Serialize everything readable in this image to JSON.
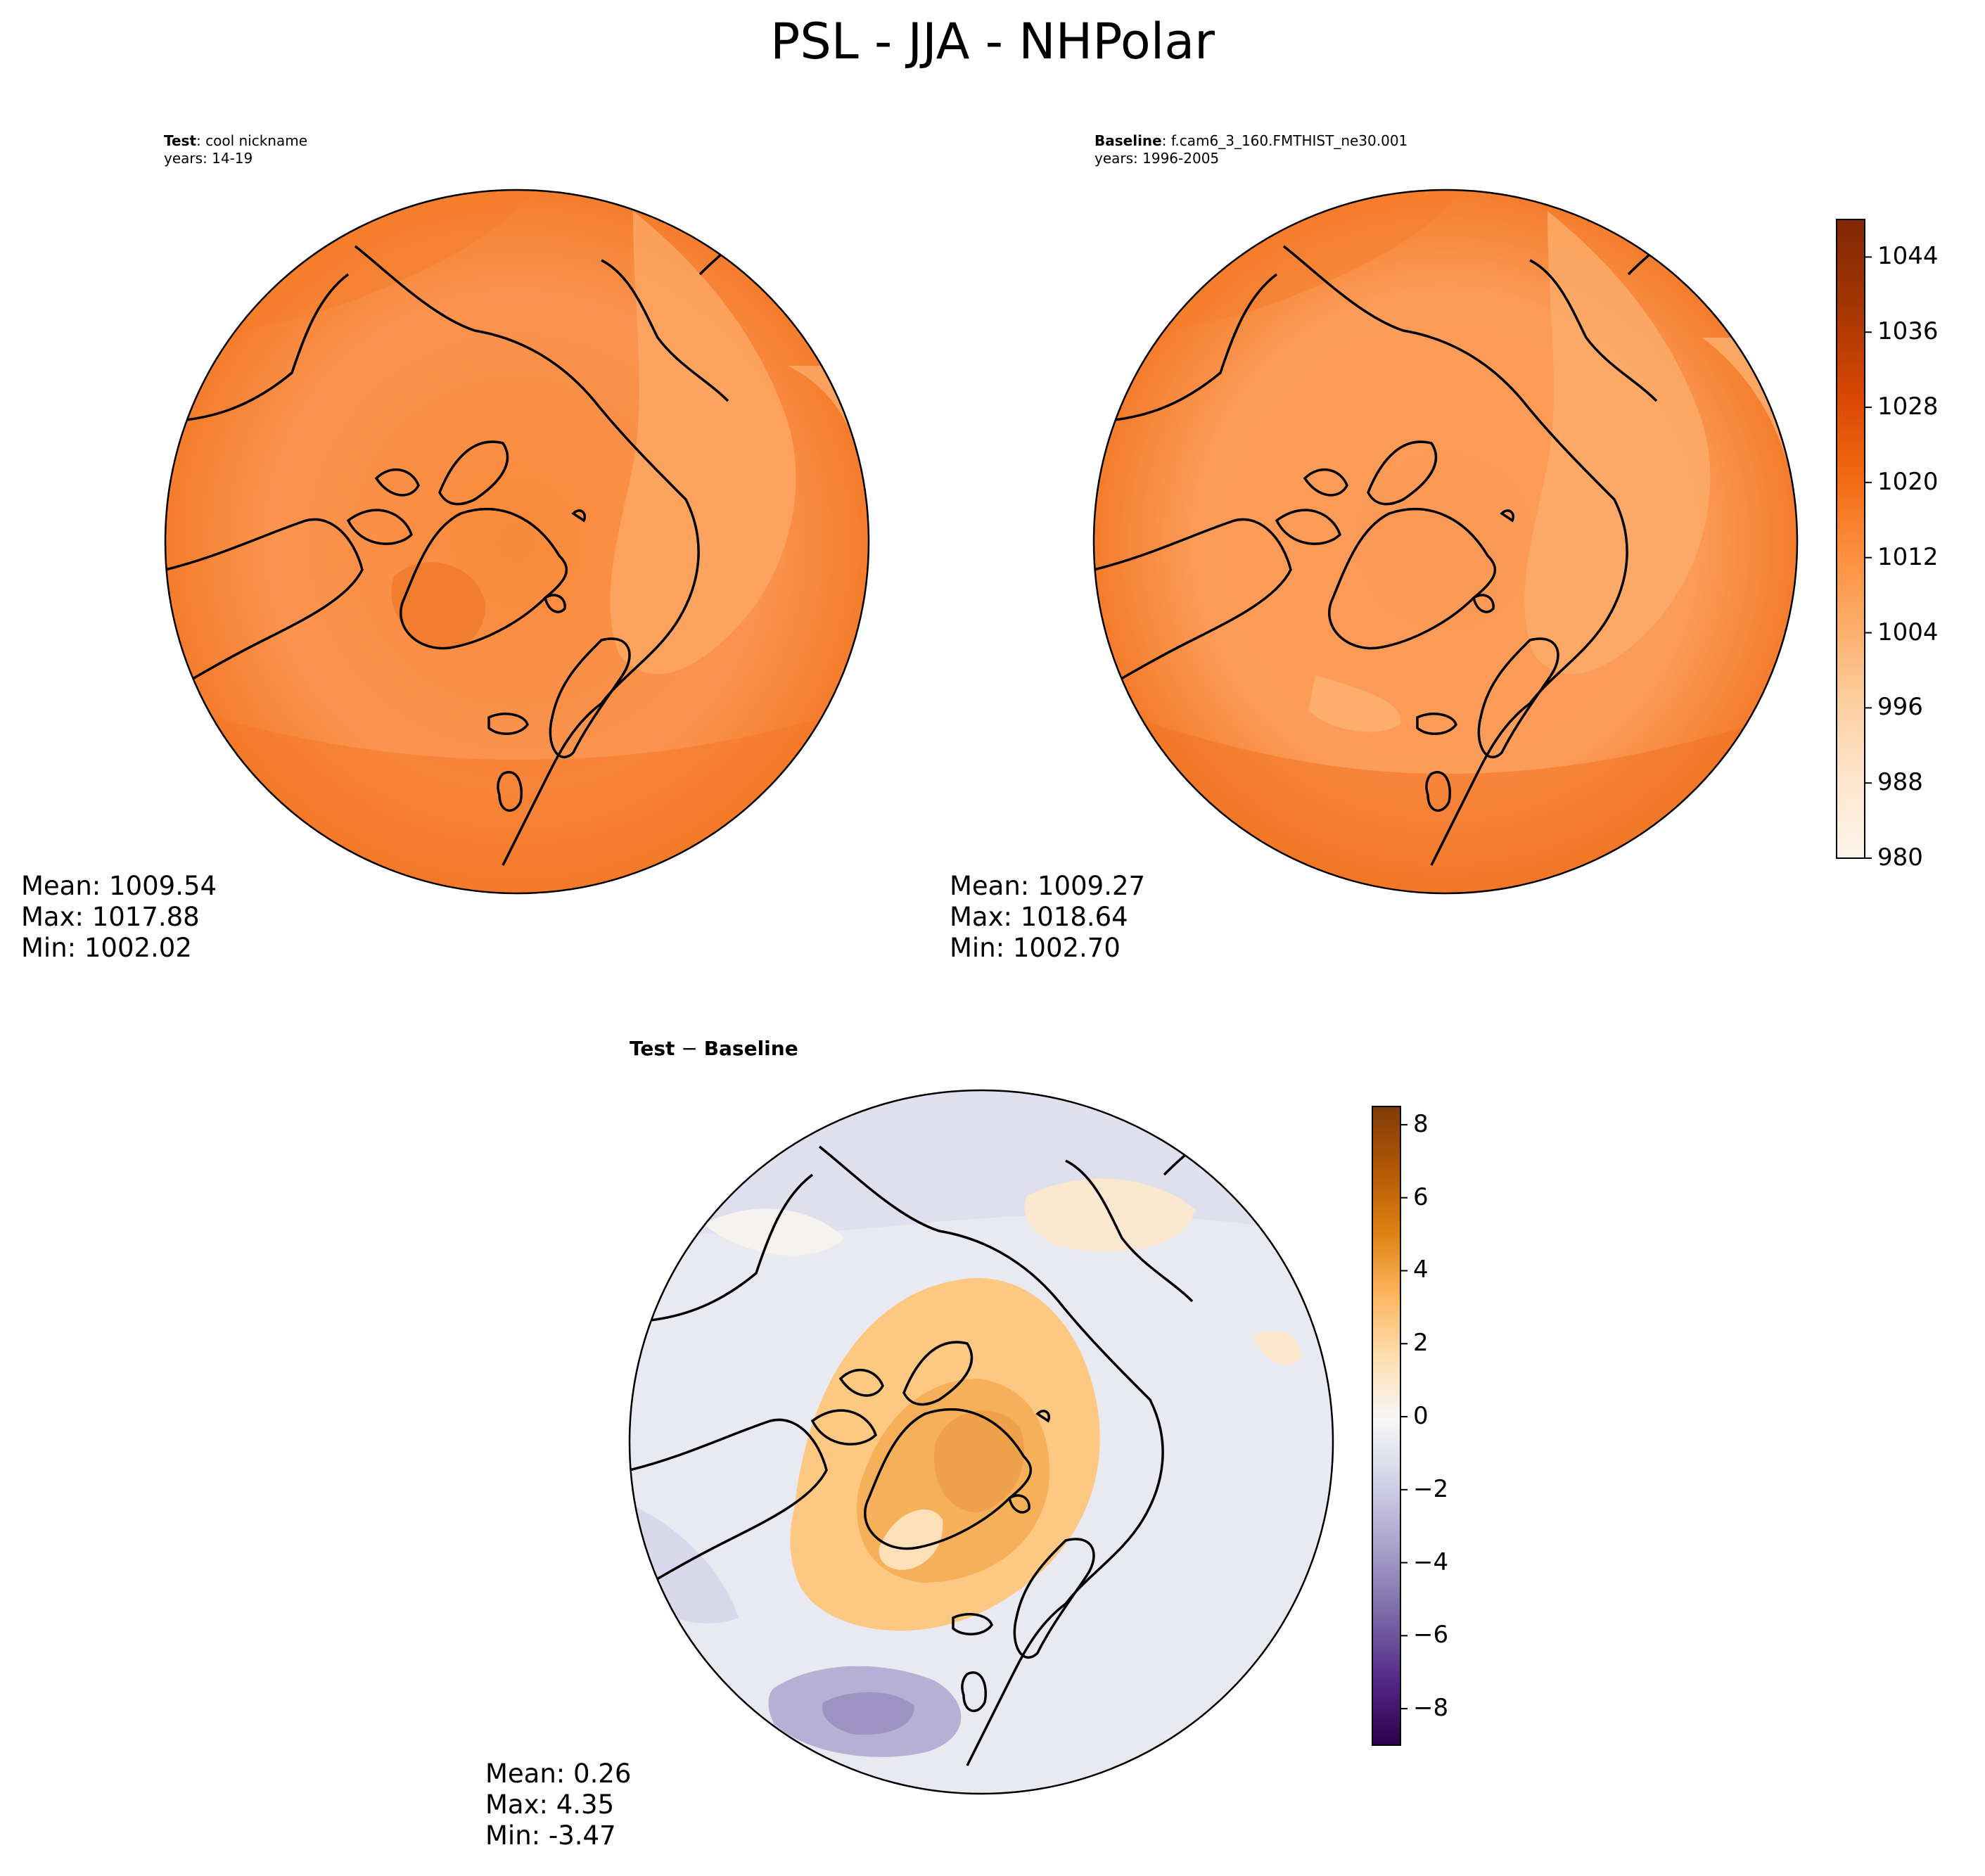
{
  "title": "PSL - JJA - NHPolar",
  "test_panel": {
    "label_bold": "Test",
    "label_rest": ": cool nickname",
    "years": "years: 14-19",
    "stats": [
      "Mean: 1009.54",
      "Max: 1017.88",
      "Min: 1002.02"
    ]
  },
  "baseline_panel": {
    "label_bold": "Baseline",
    "label_rest": ": f.cam6_3_160.FMTHIST_ne30.001",
    "years": "years: 1996-2005",
    "stats": [
      "Mean: 1009.27",
      "Max: 1018.64",
      "Min: 1002.70"
    ]
  },
  "diff_panel": {
    "label_a": "Test",
    "label_op": " − ",
    "label_b": "Baseline",
    "stats": [
      "Mean:  0.26",
      "Max:  4.35",
      "Min: -3.47"
    ]
  },
  "chart_data": [
    {
      "type": "heatmap",
      "projection": "north-polar-stereographic",
      "panel": "Test",
      "colormap": "Oranges",
      "mean": 1009.54,
      "max": 1017.88,
      "min": 1002.02
    },
    {
      "type": "heatmap",
      "projection": "north-polar-stereographic",
      "panel": "Baseline",
      "colormap": "Oranges",
      "mean": 1009.27,
      "max": 1018.64,
      "min": 1002.7,
      "colorbar": {
        "range": [
          980,
          1048
        ],
        "ticks": [
          980,
          988,
          996,
          1004,
          1012,
          1020,
          1028,
          1036,
          1044
        ],
        "tick_labels": [
          "980",
          "988",
          "996",
          "1004",
          "1012",
          "1020",
          "1028",
          "1036",
          "1044"
        ],
        "colors": [
          "#fff5eb",
          "#fee6ce",
          "#fdd0a2",
          "#fdae6b",
          "#fd8d3c",
          "#f16913",
          "#d94801",
          "#a63603",
          "#7f2704"
        ]
      }
    },
    {
      "type": "heatmap",
      "projection": "north-polar-stereographic",
      "panel": "Test - Baseline",
      "colormap": "PuOr_r",
      "mean": 0.26,
      "max": 4.35,
      "min": -3.47,
      "colorbar": {
        "range": [
          -9,
          8.5
        ],
        "ticks": [
          -8,
          -6,
          -4,
          -2,
          0,
          2,
          4,
          6,
          8
        ],
        "tick_labels": [
          "−8",
          "−6",
          "−4",
          "−2",
          "0",
          "2",
          "4",
          "6",
          "8"
        ],
        "colors": [
          "#2d004b",
          "#542788",
          "#8073ac",
          "#b2abd2",
          "#d8daeb",
          "#f7f7f7",
          "#fee0b6",
          "#fdb863",
          "#e08214",
          "#b35806",
          "#7f3b08"
        ]
      }
    }
  ]
}
